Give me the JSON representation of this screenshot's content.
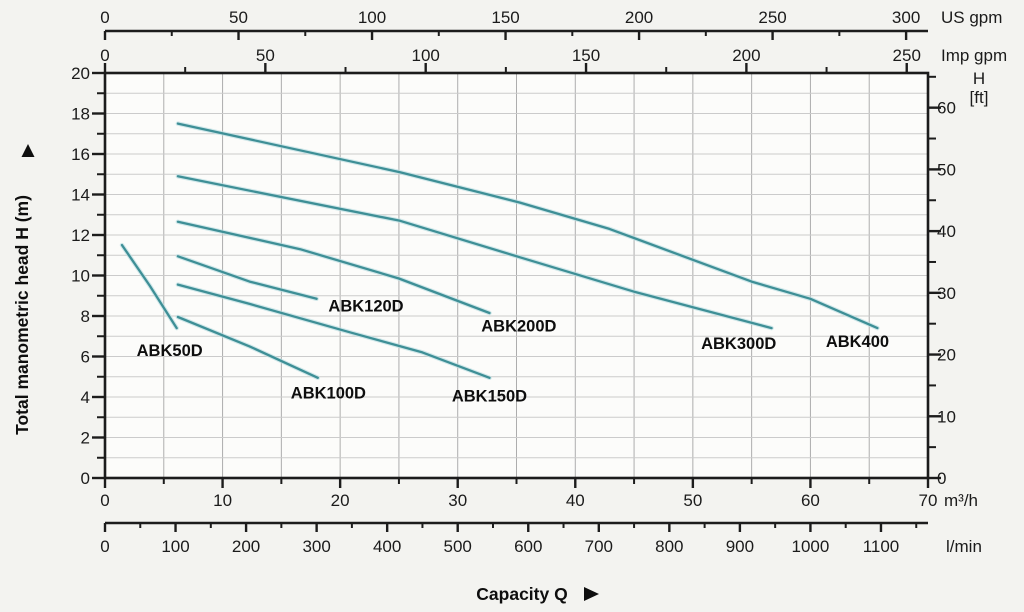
{
  "chart_data": {
    "type": "line",
    "xlabel": "Capacity Q",
    "ylabel": "Total manometric head H (m)",
    "x_axes": {
      "us_gpm": {
        "label": "US gpm",
        "min": 0,
        "max": 300,
        "major_step": 50,
        "minor_step": 25,
        "major_ticks": [
          0,
          50,
          100,
          150,
          200,
          250,
          300
        ],
        "gpm_per_m3h": 4.40287
      },
      "imp_gpm": {
        "label": "Imp gpm",
        "min": 0,
        "max": 250,
        "major_step": 50,
        "minor_step": 25,
        "major_ticks": [
          0,
          50,
          100,
          150,
          200,
          250
        ],
        "gpm_per_m3h": 3.66615
      },
      "m3h": {
        "label": "m³/h",
        "min": 0,
        "max": 70,
        "major_step": 10,
        "minor_step": 5,
        "major_ticks": [
          0,
          10,
          20,
          30,
          40,
          50,
          60,
          70
        ]
      },
      "lmin": {
        "label": "l/min",
        "min": 0,
        "max": 1100,
        "minor_max": 1150,
        "major_step": 100,
        "minor_step": 50,
        "major_ticks": [
          0,
          100,
          200,
          300,
          400,
          500,
          600,
          700,
          800,
          900,
          1000,
          1100
        ],
        "lmin_per_m3h": 16.6667
      }
    },
    "y_axes": {
      "m": {
        "label": "Total manometric head H (m)",
        "min": 0,
        "max": 20,
        "major_step": 2,
        "minor_step": 1,
        "major_ticks": [
          0,
          2,
          4,
          6,
          8,
          10,
          12,
          14,
          16,
          18,
          20
        ]
      },
      "ft": {
        "label": "H",
        "label_sub": "[ft]",
        "min": 0,
        "max": 60,
        "minor_max": 65,
        "major_step": 10,
        "minor_step": 5,
        "major_ticks": [
          0,
          10,
          20,
          30,
          40,
          50,
          60
        ],
        "ft_per_m": 3.28084
      }
    },
    "series": [
      {
        "name": "ABK50D",
        "points": [
          [
            1.45,
            11.5
          ],
          [
            3.8,
            9.5
          ],
          [
            6.1,
            7.4
          ]
        ],
        "label_at": {
          "q": 5.5,
          "h": 6.3
        }
      },
      {
        "name": "ABK100D",
        "points": [
          [
            6.2,
            7.95
          ],
          [
            12.3,
            6.5
          ],
          [
            18.1,
            4.95
          ]
        ],
        "label_at": {
          "q": 19.0,
          "h": 4.2
        }
      },
      {
        "name": "ABK120D",
        "points": [
          [
            6.2,
            10.95
          ],
          [
            12.3,
            9.7
          ],
          [
            18.0,
            8.85
          ]
        ],
        "label_at": {
          "q": 22.2,
          "h": 8.5
        }
      },
      {
        "name": "ABK150D",
        "points": [
          [
            6.2,
            9.55
          ],
          [
            12.3,
            8.6
          ],
          [
            20.8,
            7.2
          ],
          [
            27.0,
            6.2
          ],
          [
            32.7,
            4.95
          ]
        ],
        "label_at": {
          "q": 32.7,
          "h": 4.05
        }
      },
      {
        "name": "ABK200D",
        "points": [
          [
            6.2,
            12.65
          ],
          [
            16.6,
            11.3
          ],
          [
            25.0,
            9.85
          ],
          [
            32.7,
            8.15
          ]
        ],
        "label_at": {
          "q": 35.2,
          "h": 7.5
        }
      },
      {
        "name": "ABK300D",
        "points": [
          [
            6.2,
            14.9
          ],
          [
            25.1,
            12.7
          ],
          [
            35.3,
            10.9
          ],
          [
            45.0,
            9.2
          ],
          [
            56.7,
            7.4
          ]
        ],
        "label_at": {
          "q": 53.9,
          "h": 6.65
        }
      },
      {
        "name": "ABK400",
        "points": [
          [
            6.2,
            17.5
          ],
          [
            25.1,
            15.1
          ],
          [
            35.3,
            13.6
          ],
          [
            42.9,
            12.3
          ],
          [
            55.0,
            9.7
          ],
          [
            60.0,
            8.85
          ],
          [
            65.7,
            7.4
          ]
        ],
        "label_at": {
          "q": 64.0,
          "h": 6.75
        }
      }
    ],
    "colors": {
      "curve": "#3E8F96",
      "curve_halo": "#BFE0E2",
      "ink": "#1c1c1c",
      "grid_vertical": "#ADADAD",
      "grid_horizontal": "#CBCBCB",
      "plot_bg": "#FCFCFA",
      "page_bg": "#F3F3F0"
    },
    "arrows": {
      "y_axis": "▲",
      "x_axis": "►"
    }
  }
}
